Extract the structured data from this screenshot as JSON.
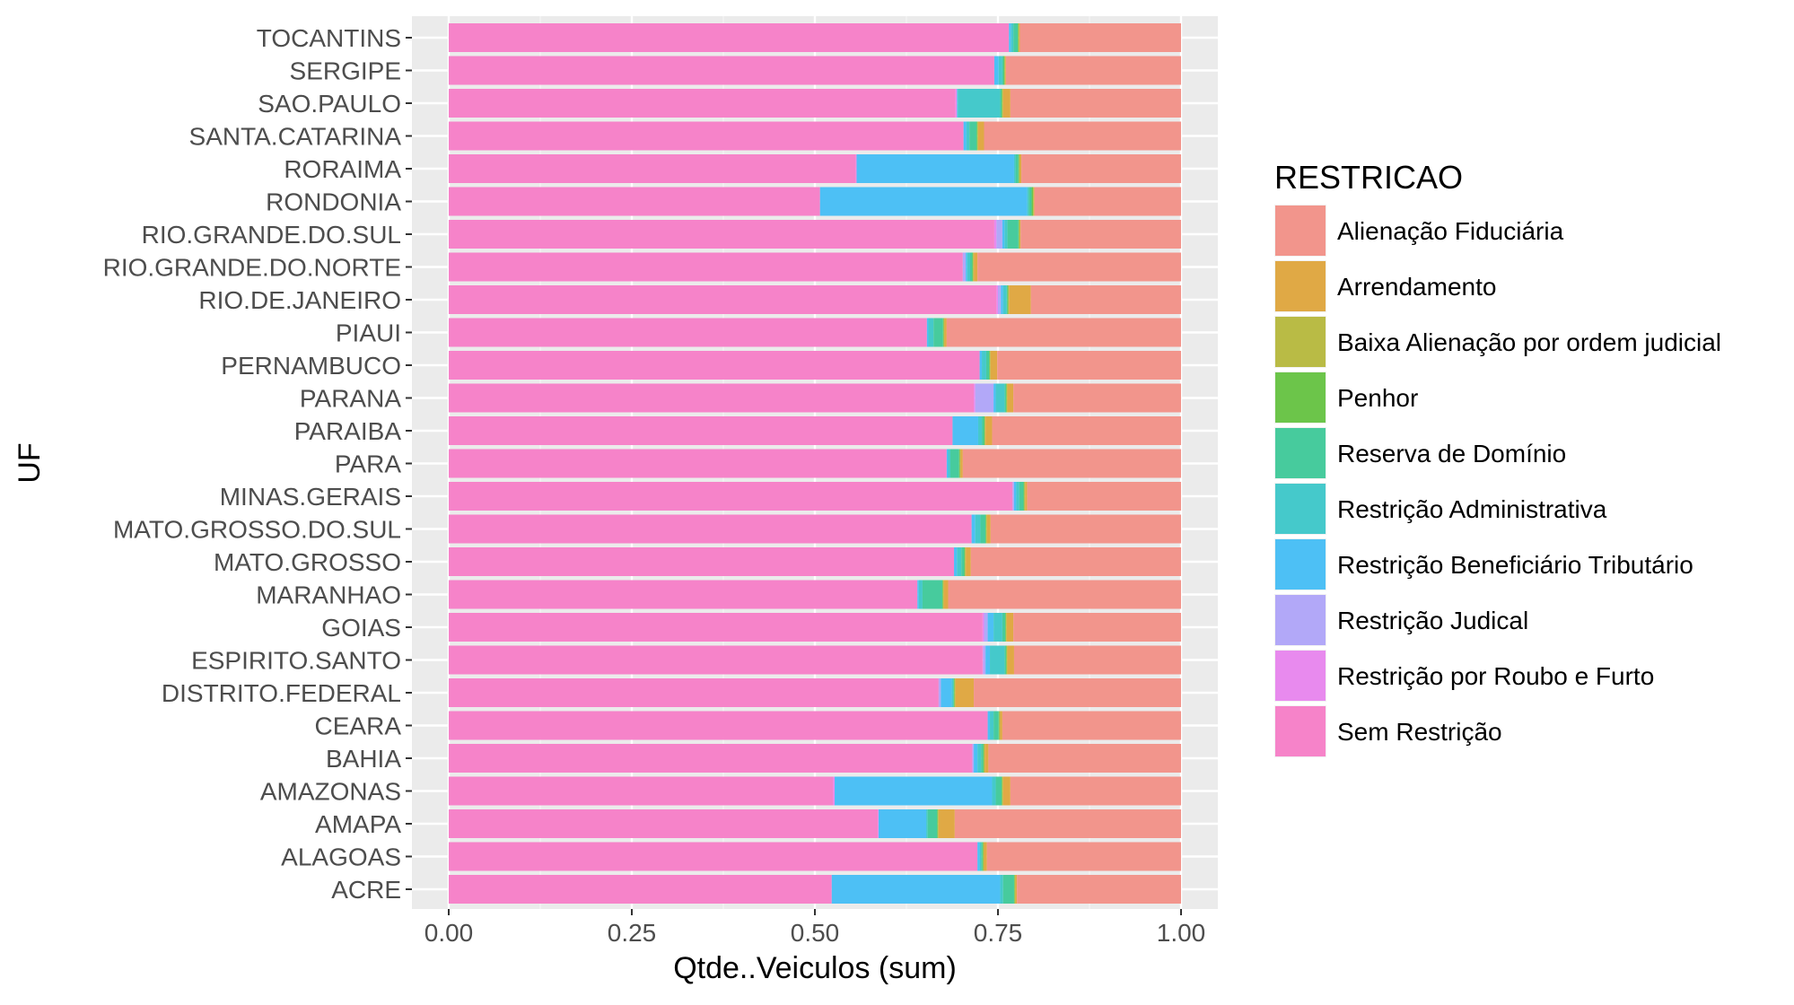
{
  "chart_data": {
    "type": "bar",
    "orientation": "horizontal",
    "stacked": true,
    "xlabel": "Qtde..Veiculos (sum)",
    "ylabel": "UF",
    "xlim": [
      0,
      1
    ],
    "x_ticks": [
      "0.00",
      "0.25",
      "0.50",
      "0.75",
      "1.00"
    ],
    "grid": true,
    "legend_title": "RESTRICAO",
    "legend_position": "right",
    "categories": [
      "TOCANTINS",
      "SERGIPE",
      "SAO.PAULO",
      "SANTA.CATARINA",
      "RORAIMA",
      "RONDONIA",
      "RIO.GRANDE.DO.SUL",
      "RIO.GRANDE.DO.NORTE",
      "RIO.DE.JANEIRO",
      "PIAUI",
      "PERNAMBUCO",
      "PARANA",
      "PARAIBA",
      "PARA",
      "MINAS.GERAIS",
      "MATO.GROSSO.DO.SUL",
      "MATO.GROSSO",
      "MARANHAO",
      "GOIAS",
      "ESPIRITO.SANTO",
      "DISTRITO.FEDERAL",
      "CEARA",
      "BAHIA",
      "AMAZONAS",
      "AMAPA",
      "ALAGOAS",
      "ACRE"
    ],
    "series": [
      {
        "name": "Sem Restrição",
        "color": "#F683C9",
        "values": [
          0.765,
          0.745,
          0.692,
          0.703,
          0.556,
          0.507,
          0.745,
          0.702,
          0.748,
          0.653,
          0.725,
          0.717,
          0.688,
          0.68,
          0.77,
          0.714,
          0.69,
          0.64,
          0.729,
          0.729,
          0.669,
          0.736,
          0.715,
          0.525,
          0.586,
          0.722,
          0.523
        ]
      },
      {
        "name": "Restrição por Roubo e Furto",
        "color": "#E88AEE",
        "values": [
          0,
          0,
          0.002,
          0,
          0.001,
          0,
          0.003,
          0,
          0.002,
          0,
          0,
          0.002,
          0,
          0,
          0,
          0,
          0,
          0,
          0.002,
          0.001,
          0,
          0,
          0,
          0.002,
          0.001,
          0,
          0
        ]
      },
      {
        "name": "Restrição Judical",
        "color": "#B2A8F8",
        "values": [
          0,
          0,
          0,
          0,
          0,
          0,
          0.008,
          0.004,
          0.004,
          0,
          0,
          0.025,
          0,
          0,
          0.002,
          0,
          0,
          0,
          0.005,
          0.003,
          0.003,
          0,
          0.002,
          0,
          0,
          0,
          0
        ]
      },
      {
        "name": "Restrição Beneficiário Tributário",
        "color": "#4DC0F5",
        "values": [
          0.003,
          0.006,
          0.001,
          0.004,
          0.215,
          0.283,
          0.003,
          0.002,
          0.003,
          0.002,
          0.003,
          0.003,
          0.035,
          0.002,
          0.003,
          0.005,
          0.004,
          0.002,
          0.008,
          0.006,
          0.015,
          0.003,
          0.005,
          0.215,
          0.065,
          0.003,
          0.23
        ]
      },
      {
        "name": "Restrição Administrativa",
        "color": "#45C9CB",
        "values": [
          0.003,
          0.005,
          0.058,
          0.004,
          0.002,
          0.002,
          0.004,
          0.004,
          0.005,
          0.007,
          0.006,
          0.012,
          0.005,
          0.003,
          0.004,
          0.007,
          0.006,
          0.005,
          0.012,
          0.02,
          0.002,
          0.005,
          0.005,
          0.005,
          0.002,
          0.002,
          0.004
        ]
      },
      {
        "name": "Reserva de Domínio",
        "color": "#47CB9D",
        "values": [
          0.006,
          0.002,
          0.002,
          0.01,
          0.004,
          0.004,
          0.015,
          0.003,
          0.001,
          0.013,
          0.004,
          0.002,
          0.003,
          0.012,
          0.006,
          0.007,
          0.004,
          0.027,
          0.004,
          0.002,
          0.001,
          0.007,
          0.003,
          0.008,
          0.013,
          0.002,
          0.015
        ]
      },
      {
        "name": "Penhor",
        "color": "#6CC54A",
        "values": [
          0.001,
          0.001,
          0.001,
          0.001,
          0.001,
          0.002,
          0.001,
          0.001,
          0.001,
          0.001,
          0.001,
          0.001,
          0.001,
          0.001,
          0.001,
          0.001,
          0.001,
          0.001,
          0.001,
          0.001,
          0.001,
          0.001,
          0.001,
          0.001,
          0.001,
          0.001,
          0.001
        ]
      },
      {
        "name": "Baixa Alienação por ordem judicial",
        "color": "#B9BB45",
        "values": [
          0.001,
          0.001,
          0.001,
          0.001,
          0.001,
          0.001,
          0.001,
          0.001,
          0.001,
          0.001,
          0.001,
          0.001,
          0.001,
          0.001,
          0.001,
          0.001,
          0.001,
          0.001,
          0.001,
          0.001,
          0.001,
          0.001,
          0.001,
          0.001,
          0.001,
          0.001,
          0.001
        ]
      },
      {
        "name": "Arrendamento",
        "color": "#E0A945",
        "values": [
          0.001,
          0.001,
          0.01,
          0.008,
          0.002,
          0.001,
          0.001,
          0.005,
          0.03,
          0.003,
          0.009,
          0.008,
          0.009,
          0.003,
          0.003,
          0.005,
          0.007,
          0.006,
          0.009,
          0.009,
          0.025,
          0.003,
          0.005,
          0.01,
          0.022,
          0.004,
          0.002
        ]
      },
      {
        "name": "Alienação Fiduciária",
        "color": "#F2958C",
        "values": [
          0.22,
          0.239,
          0.233,
          0.269,
          0.218,
          0.2,
          0.219,
          0.278,
          0.205,
          0.32,
          0.251,
          0.229,
          0.258,
          0.298,
          0.21,
          0.26,
          0.287,
          0.318,
          0.229,
          0.228,
          0.283,
          0.244,
          0.263,
          0.233,
          0.309,
          0.265,
          0.224
        ]
      }
    ],
    "legend_order": [
      "Alienação Fiduciária",
      "Arrendamento",
      "Baixa Alienação por ordem judicial",
      "Penhor",
      "Reserva de Domínio",
      "Restrição Administrativa",
      "Restrição Beneficiário Tributário",
      "Restrição Judical",
      "Restrição por Roubo e Furto",
      "Sem Restrição"
    ]
  }
}
